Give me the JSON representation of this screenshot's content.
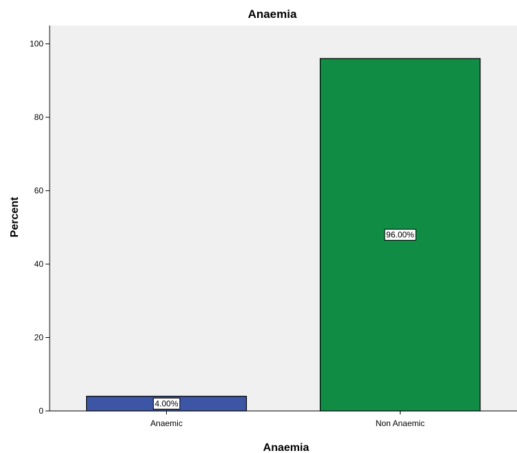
{
  "chart_data": {
    "type": "bar",
    "title": "Anaemia",
    "xlabel": "Anaemia",
    "ylabel": "Percent",
    "categories": [
      "Anaemic",
      "Non Anaemic"
    ],
    "values": [
      4.0,
      96.0
    ],
    "data_labels": [
      "4.00%",
      "96.00%"
    ],
    "colors": [
      "#3c55a5",
      "#118c45"
    ],
    "ylim": [
      0,
      105
    ],
    "yticks": [
      0,
      20,
      40,
      60,
      80,
      100
    ],
    "grid": false,
    "legend": "none",
    "plot_background": "#f0f0f0"
  }
}
